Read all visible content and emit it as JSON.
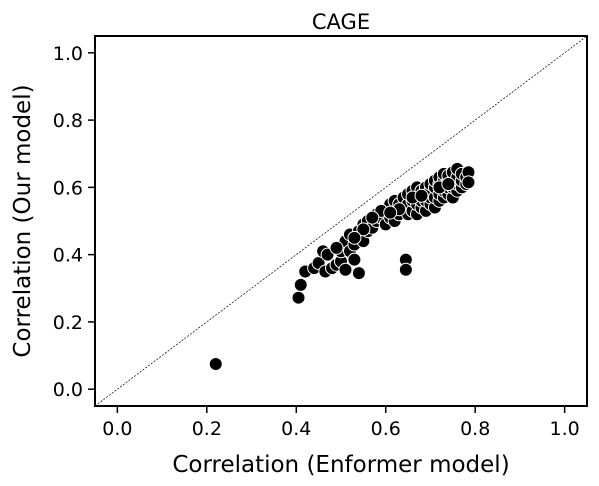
{
  "chart_data": {
    "type": "scatter",
    "title": "CAGE",
    "xlabel": "Correlation (Enformer model)",
    "ylabel": "Correlation (Our model)",
    "xlim": [
      -0.05,
      1.05
    ],
    "ylim": [
      -0.05,
      1.05
    ],
    "xticks": [
      "0.0",
      "0.2",
      "0.4",
      "0.6",
      "0.8",
      "1.0"
    ],
    "yticks": [
      "0.0",
      "0.2",
      "0.4",
      "0.6",
      "0.8",
      "1.0"
    ],
    "diagonal_reference": true,
    "grid": false,
    "marker_color": "#000000",
    "marker_edge_color": "#ffffff",
    "series": [
      {
        "points": [
          [
            0.22,
            0.075
          ],
          [
            0.405,
            0.272
          ],
          [
            0.41,
            0.31
          ],
          [
            0.42,
            0.35
          ],
          [
            0.44,
            0.36
          ],
          [
            0.45,
            0.375
          ],
          [
            0.46,
            0.41
          ],
          [
            0.465,
            0.35
          ],
          [
            0.48,
            0.36
          ],
          [
            0.49,
            0.37
          ],
          [
            0.5,
            0.38
          ],
          [
            0.5,
            0.41
          ],
          [
            0.51,
            0.355
          ],
          [
            0.51,
            0.44
          ],
          [
            0.52,
            0.41
          ],
          [
            0.52,
            0.46
          ],
          [
            0.53,
            0.385
          ],
          [
            0.53,
            0.43
          ],
          [
            0.54,
            0.345
          ],
          [
            0.54,
            0.47
          ],
          [
            0.55,
            0.44
          ],
          [
            0.55,
            0.49
          ],
          [
            0.56,
            0.47
          ],
          [
            0.56,
            0.5
          ],
          [
            0.57,
            0.48
          ],
          [
            0.58,
            0.5
          ],
          [
            0.58,
            0.52
          ],
          [
            0.59,
            0.51
          ],
          [
            0.6,
            0.49
          ],
          [
            0.6,
            0.53
          ],
          [
            0.61,
            0.51
          ],
          [
            0.61,
            0.55
          ],
          [
            0.62,
            0.5
          ],
          [
            0.62,
            0.53
          ],
          [
            0.62,
            0.56
          ],
          [
            0.63,
            0.52
          ],
          [
            0.63,
            0.55
          ],
          [
            0.64,
            0.54
          ],
          [
            0.64,
            0.57
          ],
          [
            0.645,
            0.385
          ],
          [
            0.645,
            0.355
          ],
          [
            0.65,
            0.52
          ],
          [
            0.65,
            0.55
          ],
          [
            0.65,
            0.58
          ],
          [
            0.66,
            0.53
          ],
          [
            0.66,
            0.56
          ],
          [
            0.66,
            0.59
          ],
          [
            0.67,
            0.52
          ],
          [
            0.67,
            0.55
          ],
          [
            0.67,
            0.57
          ],
          [
            0.67,
            0.6
          ],
          [
            0.68,
            0.54
          ],
          [
            0.68,
            0.56
          ],
          [
            0.68,
            0.59
          ],
          [
            0.69,
            0.53
          ],
          [
            0.69,
            0.56
          ],
          [
            0.69,
            0.58
          ],
          [
            0.69,
            0.6
          ],
          [
            0.7,
            0.55
          ],
          [
            0.7,
            0.57
          ],
          [
            0.7,
            0.59
          ],
          [
            0.7,
            0.61
          ],
          [
            0.71,
            0.54
          ],
          [
            0.71,
            0.57
          ],
          [
            0.71,
            0.6
          ],
          [
            0.71,
            0.62
          ],
          [
            0.72,
            0.56
          ],
          [
            0.72,
            0.58
          ],
          [
            0.72,
            0.61
          ],
          [
            0.72,
            0.63
          ],
          [
            0.73,
            0.57
          ],
          [
            0.73,
            0.59
          ],
          [
            0.73,
            0.62
          ],
          [
            0.73,
            0.64
          ],
          [
            0.74,
            0.58
          ],
          [
            0.74,
            0.6
          ],
          [
            0.74,
            0.62
          ],
          [
            0.74,
            0.635
          ],
          [
            0.75,
            0.57
          ],
          [
            0.75,
            0.6
          ],
          [
            0.75,
            0.62
          ],
          [
            0.75,
            0.645
          ],
          [
            0.76,
            0.59
          ],
          [
            0.76,
            0.61
          ],
          [
            0.76,
            0.63
          ],
          [
            0.76,
            0.655
          ],
          [
            0.77,
            0.6
          ],
          [
            0.77,
            0.62
          ],
          [
            0.77,
            0.64
          ],
          [
            0.78,
            0.61
          ],
          [
            0.78,
            0.63
          ],
          [
            0.785,
            0.645
          ],
          [
            0.785,
            0.615
          ],
          [
            0.59,
            0.53
          ],
          [
            0.57,
            0.51
          ],
          [
            0.55,
            0.475
          ],
          [
            0.53,
            0.45
          ],
          [
            0.47,
            0.4
          ],
          [
            0.49,
            0.42
          ],
          [
            0.66,
            0.57
          ],
          [
            0.68,
            0.575
          ],
          [
            0.72,
            0.6
          ],
          [
            0.63,
            0.535
          ],
          [
            0.61,
            0.525
          ],
          [
            0.74,
            0.61
          ]
        ]
      }
    ]
  }
}
